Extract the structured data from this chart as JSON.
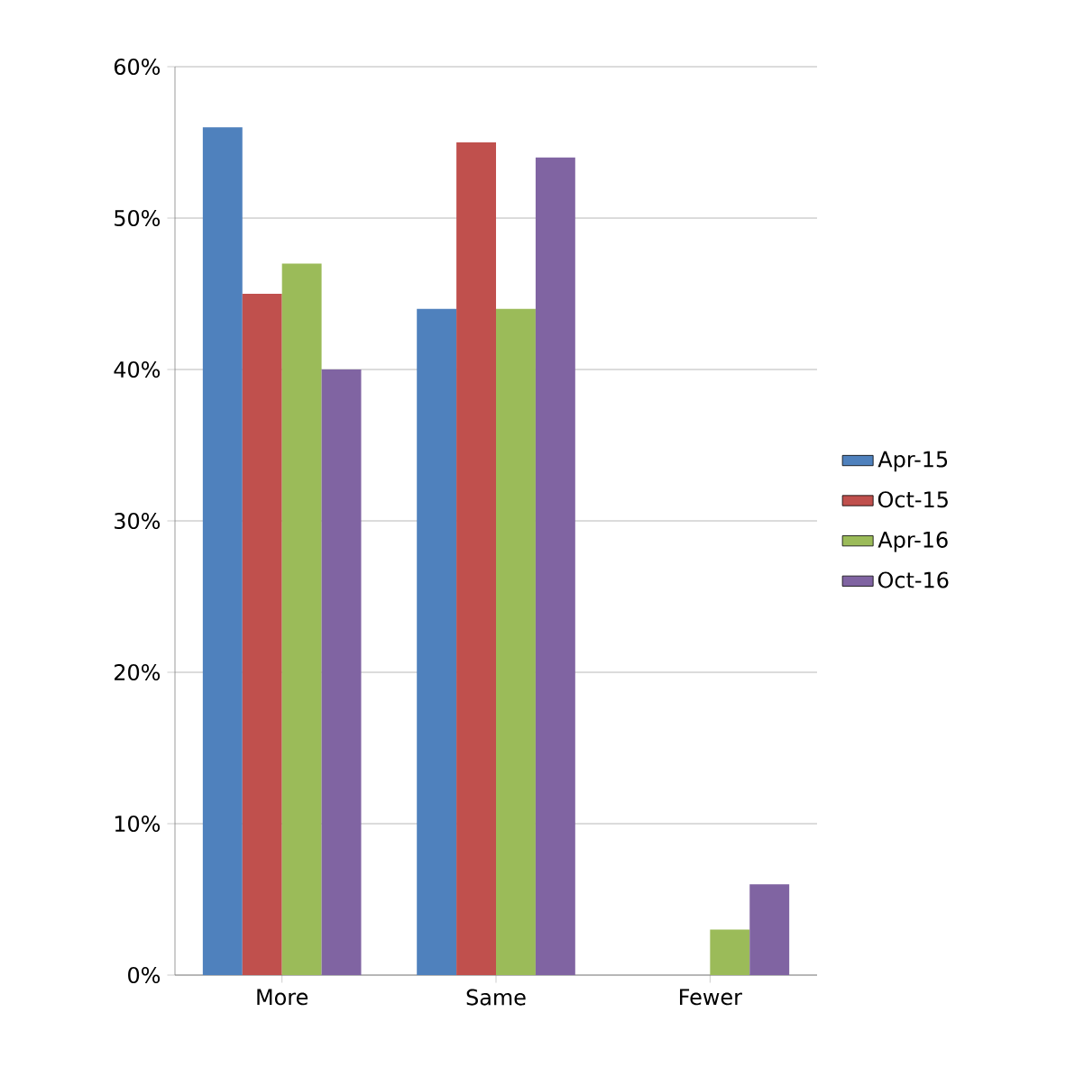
{
  "chart_data": {
    "type": "bar",
    "categories": [
      "More",
      "Same",
      "Fewer"
    ],
    "series": [
      {
        "name": "Apr-15",
        "color": "#4f81bd",
        "values": [
          56,
          44,
          0
        ]
      },
      {
        "name": "Oct-15",
        "color": "#c0504d",
        "values": [
          45,
          55,
          0
        ]
      },
      {
        "name": "Apr-16",
        "color": "#9bbb59",
        "values": [
          47,
          44,
          3
        ]
      },
      {
        "name": "Oct-16",
        "color": "#8064a2",
        "values": [
          40,
          54,
          6
        ]
      }
    ],
    "ylim": [
      0,
      60
    ],
    "yticks": [
      {
        "value": 0,
        "label": "0%"
      },
      {
        "value": 10,
        "label": "10%"
      },
      {
        "value": 20,
        "label": "20%"
      },
      {
        "value": 30,
        "label": "30%"
      },
      {
        "value": 40,
        "label": "40%"
      },
      {
        "value": 50,
        "label": "50%"
      },
      {
        "value": 60,
        "label": "60%"
      }
    ],
    "grid": "y",
    "legend": "right"
  }
}
